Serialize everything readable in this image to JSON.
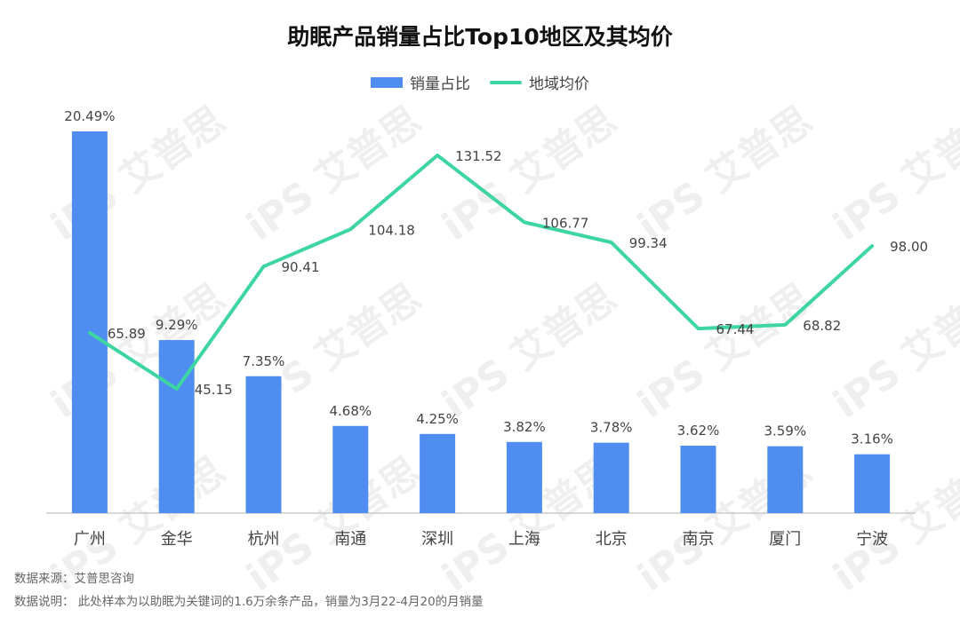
{
  "title": "助眠产品销量占比Top10地区及其均价",
  "legend": [
    {
      "name": "销量占比",
      "color": "#4f8ef0",
      "kind": "bar"
    },
    {
      "name": "地域均价",
      "color": "#3dd6a0",
      "kind": "line"
    }
  ],
  "footnote": {
    "source": "数据来源：艾普思咨询",
    "note": "数据说明： 此处样本为以助眠为关键词的1.6万余条产品，销量为3月22-4月20的月销量"
  },
  "chart_data": {
    "type": "bar",
    "title": "助眠产品销量占比Top10地区及其均价",
    "categories": [
      "广州",
      "金华",
      "杭州",
      "南通",
      "深圳",
      "上海",
      "北京",
      "南京",
      "厦门",
      "宁波"
    ],
    "series": [
      {
        "name": "销量占比",
        "type": "bar",
        "values": [
          20.49,
          9.29,
          7.35,
          4.68,
          4.25,
          3.82,
          3.78,
          3.62,
          3.59,
          3.16
        ],
        "labels": [
          "20.49%",
          "9.29%",
          "7.35%",
          "4.68%",
          "4.25%",
          "3.82%",
          "3.78%",
          "3.62%",
          "3.59%",
          "3.16%"
        ],
        "color": "#4f8ef0"
      },
      {
        "name": "地域均价",
        "type": "line",
        "values": [
          65.89,
          45.15,
          90.41,
          104.18,
          131.52,
          106.77,
          99.34,
          67.44,
          68.82,
          98.0
        ],
        "labels": [
          "65.89",
          "45.15",
          "90.41",
          "104.18",
          "131.52",
          "106.77",
          "99.34",
          "67.44",
          "68.82",
          "98.00"
        ],
        "color": "#3dd6a0"
      }
    ],
    "legend_position": "top-center",
    "grid": false
  },
  "watermark": "iPS 艾普思"
}
